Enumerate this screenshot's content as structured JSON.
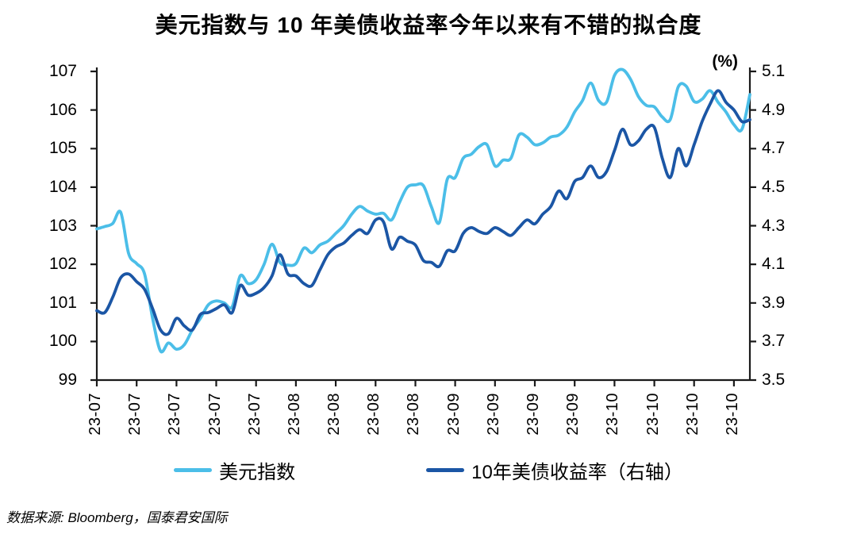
{
  "footer": {
    "source_note": "数据来源: Bloomberg，国泰君安国际"
  },
  "chart_data": {
    "type": "line",
    "title": "美元指数与 10 年美债收益率今年以来有不错的拟合度",
    "right_axis_unit": "(%)",
    "grid": false,
    "legend_position": "bottom",
    "axis_color": "#1a1a1a",
    "left_axis": {
      "lim": [
        99,
        107
      ],
      "tick_labels": [
        "107",
        "106",
        "105",
        "104",
        "103",
        "102",
        "101",
        "100",
        "99"
      ]
    },
    "right_axis": {
      "lim": [
        3.5,
        5.1
      ],
      "tick_labels": [
        "5.1",
        "4.9",
        "4.7",
        "4.5",
        "4.3",
        "4.1",
        "3.9",
        "3.7",
        "3.5"
      ]
    },
    "x_tick_labels": [
      "23-07",
      "23-07",
      "23-07",
      "23-07",
      "23-07",
      "23-08",
      "23-08",
      "23-08",
      "23-08",
      "23-09",
      "23-09",
      "23-09",
      "23-09",
      "23-10",
      "23-10",
      "23-10",
      "23-10"
    ],
    "x_tick_day_indices": [
      0,
      5,
      10,
      15,
      20,
      25,
      30,
      35,
      40,
      45,
      50,
      55,
      60,
      65,
      70,
      75,
      80
    ],
    "series": [
      {
        "key": "dxy-index-line",
        "name": "美元指数",
        "axis": "left",
        "color": "#4BBEE8",
        "values": [
          102.92,
          102.98,
          103.06,
          103.35,
          102.28,
          102.02,
          101.75,
          100.6,
          99.75,
          99.96,
          99.8,
          99.92,
          100.3,
          100.6,
          100.95,
          101.05,
          101.0,
          100.9,
          101.7,
          101.5,
          101.6,
          102.0,
          102.52,
          102.05,
          101.98,
          102.02,
          102.42,
          102.3,
          102.5,
          102.6,
          102.8,
          103.0,
          103.3,
          103.5,
          103.38,
          103.3,
          103.32,
          103.15,
          103.6,
          104.0,
          104.06,
          104.04,
          103.5,
          103.08,
          104.2,
          104.25,
          104.75,
          104.85,
          105.05,
          105.1,
          104.55,
          104.7,
          104.75,
          105.35,
          105.3,
          105.1,
          105.15,
          105.3,
          105.35,
          105.55,
          105.95,
          106.25,
          106.7,
          106.25,
          106.2,
          106.9,
          107.05,
          106.8,
          106.35,
          106.12,
          106.08,
          105.82,
          105.75,
          106.6,
          106.62,
          106.22,
          106.28,
          106.5,
          106.2,
          105.95,
          105.62,
          105.5,
          106.4
        ]
      },
      {
        "key": "ust10y-yield-line",
        "name": "10年美债收益率（右轴）",
        "axis": "right",
        "color": "#1B56A5",
        "values": [
          3.86,
          3.85,
          3.93,
          4.03,
          4.05,
          4.01,
          3.97,
          3.87,
          3.76,
          3.74,
          3.82,
          3.78,
          3.76,
          3.84,
          3.85,
          3.87,
          3.89,
          3.85,
          3.99,
          3.94,
          3.95,
          3.98,
          4.04,
          4.15,
          4.05,
          4.04,
          4.0,
          3.99,
          4.07,
          4.15,
          4.19,
          4.21,
          4.25,
          4.28,
          4.26,
          4.33,
          4.32,
          4.18,
          4.24,
          4.22,
          4.2,
          4.12,
          4.11,
          4.09,
          4.17,
          4.17,
          4.26,
          4.29,
          4.27,
          4.26,
          4.29,
          4.27,
          4.25,
          4.29,
          4.33,
          4.31,
          4.36,
          4.4,
          4.48,
          4.44,
          4.53,
          4.55,
          4.61,
          4.55,
          4.58,
          4.69,
          4.8,
          4.72,
          4.74,
          4.8,
          4.81,
          4.65,
          4.55,
          4.7,
          4.61,
          4.72,
          4.84,
          4.93,
          5.0,
          4.94,
          4.9,
          4.84,
          4.85
        ]
      }
    ]
  }
}
